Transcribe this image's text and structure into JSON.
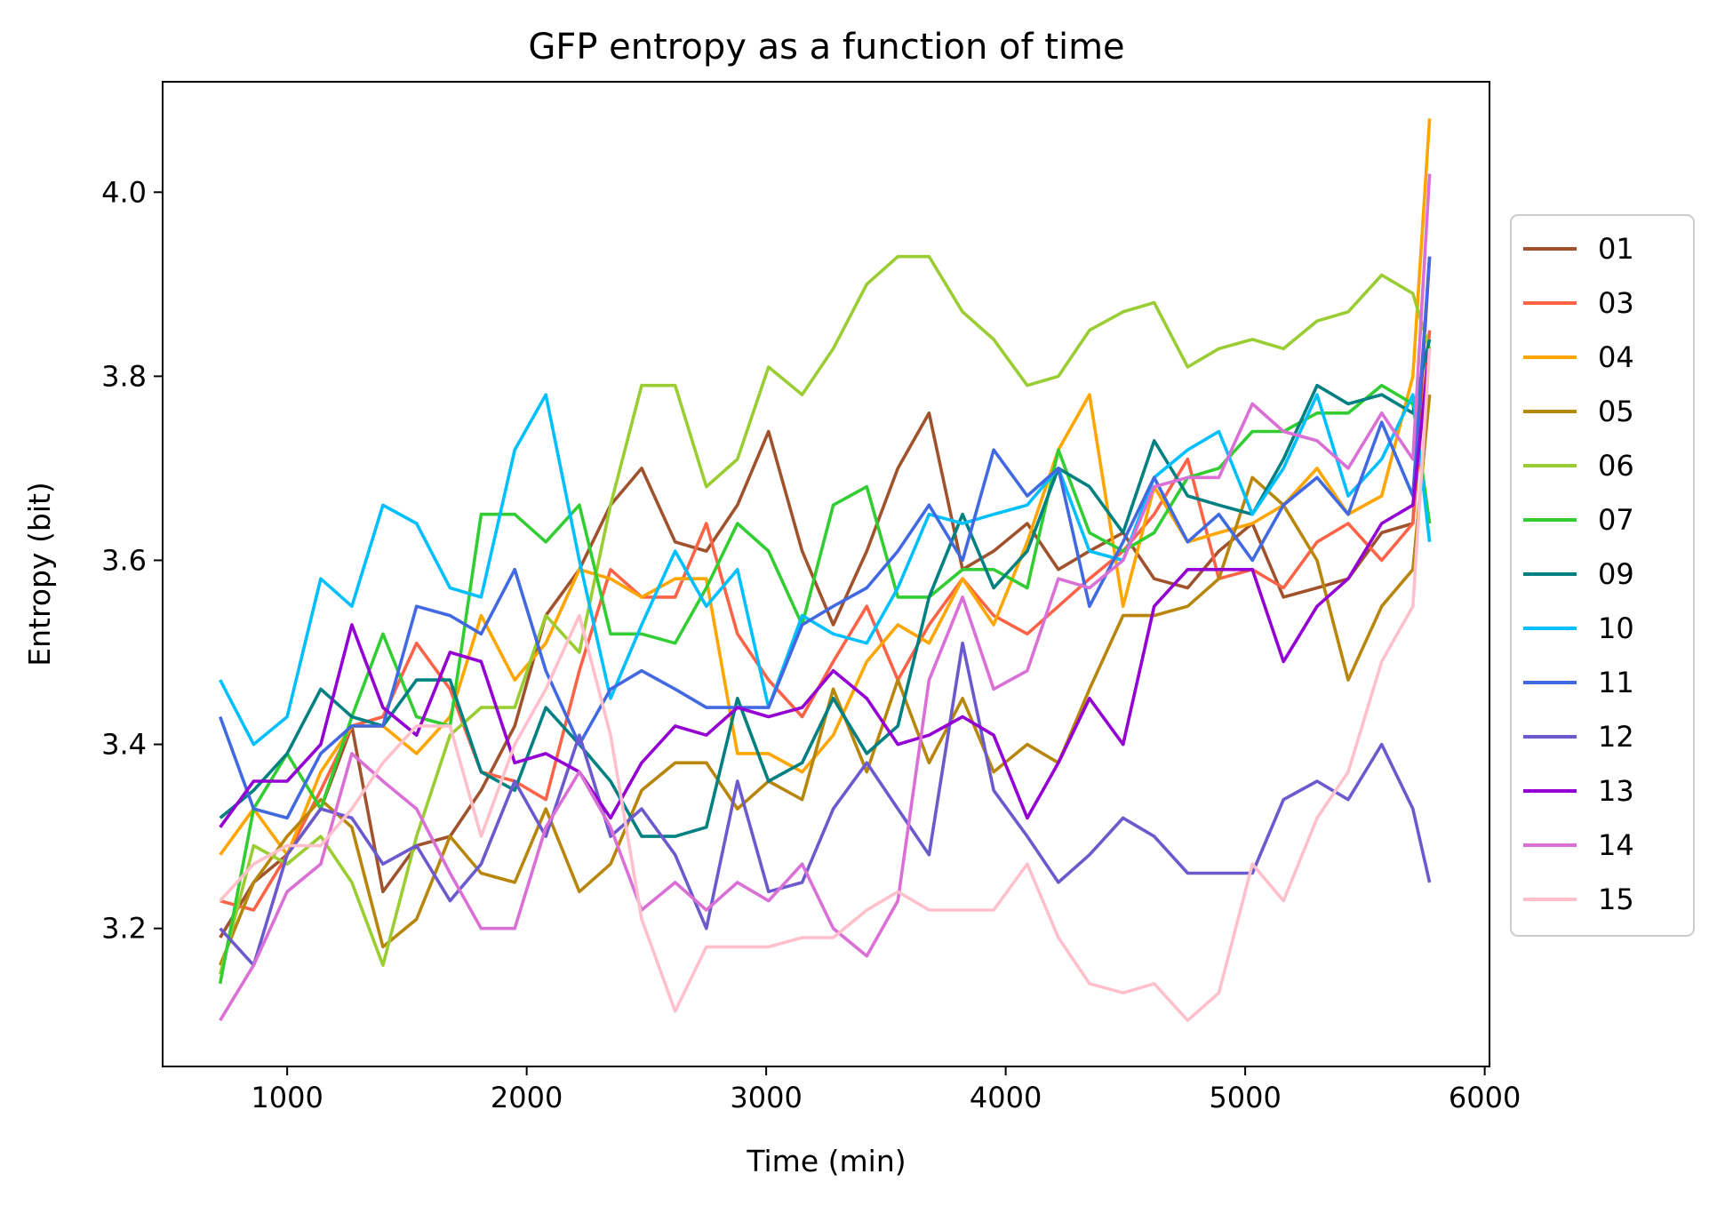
{
  "chart_data": {
    "type": "line",
    "title": "GFP entropy as a function of time",
    "xlabel": "Time (min)",
    "ylabel": "Entropy (bit)",
    "xlim": [
      480,
      6020
    ],
    "ylim": [
      3.05,
      4.12
    ],
    "xticks": [
      1000,
      2000,
      3000,
      4000,
      5000,
      6000
    ],
    "xtick_labels": [
      "1000",
      "2000",
      "3000",
      "4000",
      "5000",
      "6000"
    ],
    "yticks": [
      3.2,
      3.4,
      3.6,
      3.8,
      4.0
    ],
    "ytick_labels": [
      "3.2",
      "3.4",
      "3.6",
      "3.8",
      "4.0"
    ],
    "grid": false,
    "legend_position": "right, outside plot",
    "x": [
      720,
      860,
      1000,
      1140,
      1270,
      1400,
      1540,
      1680,
      1810,
      1950,
      2080,
      2220,
      2350,
      2480,
      2620,
      2750,
      2880,
      3010,
      3150,
      3280,
      3420,
      3550,
      3680,
      3820,
      3950,
      4090,
      4220,
      4350,
      4490,
      4620,
      4760,
      4890,
      5030,
      5160,
      5300,
      5430,
      5570,
      5700,
      5770
    ],
    "series": [
      {
        "name": "01",
        "color": "#a0522d",
        "values": [
          3.19,
          3.25,
          3.28,
          3.33,
          3.42,
          3.24,
          3.29,
          3.3,
          3.35,
          3.42,
          3.54,
          3.59,
          3.66,
          3.7,
          3.62,
          3.61,
          3.66,
          3.74,
          3.61,
          3.53,
          3.61,
          3.7,
          3.76,
          3.59,
          3.61,
          3.64,
          3.59,
          3.61,
          3.63,
          3.58,
          3.57,
          3.61,
          3.64,
          3.56,
          3.57,
          3.58,
          3.63,
          3.64,
          3.93
        ]
      },
      {
        "name": "03",
        "color": "#ff6347",
        "values": [
          3.23,
          3.22,
          3.28,
          3.35,
          3.42,
          3.43,
          3.51,
          3.46,
          3.37,
          3.36,
          3.34,
          3.48,
          3.59,
          3.56,
          3.56,
          3.64,
          3.52,
          3.47,
          3.43,
          3.49,
          3.55,
          3.47,
          3.53,
          3.58,
          3.54,
          3.52,
          3.55,
          3.58,
          3.61,
          3.65,
          3.71,
          3.58,
          3.59,
          3.57,
          3.62,
          3.64,
          3.6,
          3.64,
          3.85
        ]
      },
      {
        "name": "04",
        "color": "#ffa500",
        "values": [
          3.28,
          3.33,
          3.28,
          3.37,
          3.42,
          3.42,
          3.39,
          3.43,
          3.54,
          3.47,
          3.51,
          3.59,
          3.58,
          3.56,
          3.58,
          3.58,
          3.39,
          3.39,
          3.37,
          3.41,
          3.49,
          3.53,
          3.51,
          3.58,
          3.53,
          3.62,
          3.72,
          3.78,
          3.55,
          3.68,
          3.62,
          3.63,
          3.64,
          3.66,
          3.7,
          3.65,
          3.67,
          3.8,
          4.08
        ]
      },
      {
        "name": "05",
        "color": "#b8860b",
        "values": [
          3.16,
          3.25,
          3.3,
          3.34,
          3.31,
          3.18,
          3.21,
          3.3,
          3.26,
          3.25,
          3.33,
          3.24,
          3.27,
          3.35,
          3.38,
          3.38,
          3.33,
          3.36,
          3.34,
          3.46,
          3.37,
          3.47,
          3.38,
          3.45,
          3.37,
          3.4,
          3.38,
          3.46,
          3.54,
          3.54,
          3.55,
          3.58,
          3.69,
          3.66,
          3.6,
          3.47,
          3.55,
          3.59,
          3.78
        ]
      },
      {
        "name": "06",
        "color": "#9acd32",
        "values": [
          3.15,
          3.29,
          3.27,
          3.3,
          3.25,
          3.16,
          3.3,
          3.41,
          3.44,
          3.44,
          3.54,
          3.5,
          3.66,
          3.79,
          3.79,
          3.68,
          3.71,
          3.81,
          3.78,
          3.83,
          3.9,
          3.93,
          3.93,
          3.87,
          3.84,
          3.79,
          3.8,
          3.85,
          3.87,
          3.88,
          3.81,
          3.83,
          3.84,
          3.83,
          3.86,
          3.87,
          3.91,
          3.89,
          3.83
        ]
      },
      {
        "name": "07",
        "color": "#32cd32",
        "values": [
          3.14,
          3.33,
          3.39,
          3.33,
          3.43,
          3.52,
          3.43,
          3.42,
          3.65,
          3.65,
          3.62,
          3.66,
          3.52,
          3.52,
          3.51,
          3.57,
          3.64,
          3.61,
          3.53,
          3.66,
          3.68,
          3.56,
          3.56,
          3.59,
          3.59,
          3.57,
          3.72,
          3.63,
          3.61,
          3.63,
          3.69,
          3.7,
          3.74,
          3.74,
          3.76,
          3.76,
          3.79,
          3.77,
          3.64
        ]
      },
      {
        "name": "09",
        "color": "#008080",
        "values": [
          3.32,
          3.35,
          3.39,
          3.46,
          3.43,
          3.42,
          3.47,
          3.47,
          3.37,
          3.35,
          3.44,
          3.4,
          3.36,
          3.3,
          3.3,
          3.31,
          3.45,
          3.36,
          3.38,
          3.45,
          3.39,
          3.42,
          3.56,
          3.65,
          3.57,
          3.61,
          3.7,
          3.68,
          3.63,
          3.73,
          3.67,
          3.66,
          3.65,
          3.71,
          3.79,
          3.77,
          3.78,
          3.76,
          3.84
        ]
      },
      {
        "name": "10",
        "color": "#00bfff",
        "values": [
          3.47,
          3.4,
          3.43,
          3.58,
          3.55,
          3.66,
          3.64,
          3.57,
          3.56,
          3.72,
          3.78,
          3.6,
          3.45,
          3.53,
          3.61,
          3.55,
          3.59,
          3.44,
          3.54,
          3.52,
          3.51,
          3.57,
          3.65,
          3.64,
          3.65,
          3.66,
          3.7,
          3.61,
          3.6,
          3.69,
          3.72,
          3.74,
          3.65,
          3.7,
          3.78,
          3.67,
          3.71,
          3.78,
          3.62
        ]
      },
      {
        "name": "11",
        "color": "#4169e1",
        "values": [
          3.43,
          3.33,
          3.32,
          3.39,
          3.42,
          3.42,
          3.55,
          3.54,
          3.52,
          3.59,
          3.48,
          3.4,
          3.46,
          3.48,
          3.46,
          3.44,
          3.44,
          3.44,
          3.53,
          3.55,
          3.57,
          3.61,
          3.66,
          3.6,
          3.72,
          3.67,
          3.7,
          3.55,
          3.62,
          3.69,
          3.62,
          3.65,
          3.6,
          3.66,
          3.69,
          3.65,
          3.75,
          3.67,
          3.93
        ]
      },
      {
        "name": "12",
        "color": "#6a5acd",
        "values": [
          3.2,
          3.16,
          3.28,
          3.33,
          3.32,
          3.27,
          3.29,
          3.23,
          3.27,
          3.36,
          3.3,
          3.41,
          3.3,
          3.33,
          3.28,
          3.2,
          3.36,
          3.24,
          3.25,
          3.33,
          3.38,
          3.33,
          3.28,
          3.51,
          3.35,
          3.3,
          3.25,
          3.28,
          3.32,
          3.3,
          3.26,
          3.26,
          3.26,
          3.34,
          3.36,
          3.34,
          3.4,
          3.33,
          3.25
        ]
      },
      {
        "name": "13",
        "color": "#9400d3",
        "values": [
          3.31,
          3.36,
          3.36,
          3.4,
          3.53,
          3.44,
          3.41,
          3.5,
          3.49,
          3.38,
          3.39,
          3.37,
          3.32,
          3.38,
          3.42,
          3.41,
          3.44,
          3.43,
          3.44,
          3.48,
          3.45,
          3.4,
          3.41,
          3.43,
          3.41,
          3.32,
          3.38,
          3.45,
          3.4,
          3.55,
          3.59,
          3.59,
          3.59,
          3.49,
          3.55,
          3.58,
          3.64,
          3.66,
          3.83
        ]
      },
      {
        "name": "14",
        "color": "#da70d6",
        "values": [
          3.1,
          3.16,
          3.24,
          3.27,
          3.39,
          3.36,
          3.33,
          3.26,
          3.2,
          3.2,
          3.31,
          3.37,
          3.31,
          3.22,
          3.25,
          3.22,
          3.25,
          3.23,
          3.27,
          3.2,
          3.17,
          3.23,
          3.47,
          3.56,
          3.46,
          3.48,
          3.58,
          3.57,
          3.6,
          3.68,
          3.69,
          3.69,
          3.77,
          3.74,
          3.73,
          3.7,
          3.76,
          3.71,
          4.02
        ]
      },
      {
        "name": "15",
        "color": "#ffc0cb",
        "values": [
          3.23,
          3.27,
          3.29,
          3.29,
          3.33,
          3.38,
          3.42,
          3.42,
          3.3,
          3.4,
          3.46,
          3.54,
          3.41,
          3.21,
          3.11,
          3.18,
          3.18,
          3.18,
          3.19,
          3.19,
          3.22,
          3.24,
          3.22,
          3.22,
          3.22,
          3.27,
          3.19,
          3.14,
          3.13,
          3.14,
          3.1,
          3.13,
          3.27,
          3.23,
          3.32,
          3.37,
          3.49,
          3.55,
          3.83
        ]
      }
    ]
  }
}
